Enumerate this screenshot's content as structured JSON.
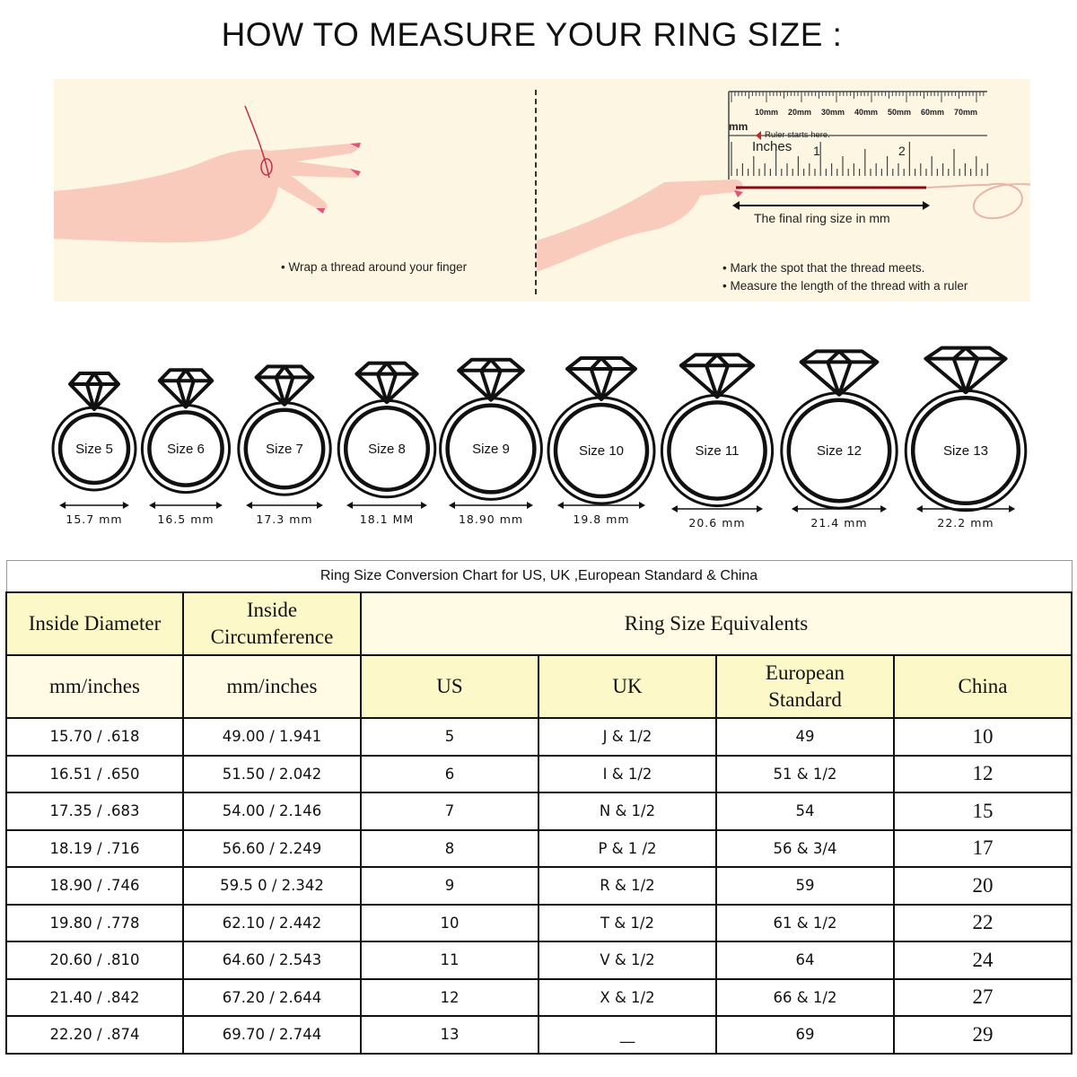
{
  "title": "HOW TO MEASURE YOUR RING SIZE :",
  "instructions": {
    "left": [
      "Wrap a thread around your finger"
    ],
    "right": [
      "Mark the spot that the thread meets.",
      "Measure the length of the thread with a ruler"
    ],
    "ruler": {
      "mm_ticks": [
        "10mm",
        "20mm",
        "30mm",
        "40mm",
        "50mm",
        "60mm",
        "70mm"
      ],
      "mm_label": "mm",
      "start_note": "Ruler starts here.",
      "inches_label": "Inches",
      "inch_ticks": [
        "1",
        "2"
      ],
      "final_label": "The final ring size in mm"
    },
    "thread_color": "#8b0a14"
  },
  "rings": [
    {
      "label": "Size 5",
      "mm": "15.7 mm"
    },
    {
      "label": "Size 6",
      "mm": "16.5 mm"
    },
    {
      "label": "Size 7",
      "mm": "17.3 mm"
    },
    {
      "label": "Size 8",
      "mm": "18.1 MM"
    },
    {
      "label": "Size 9",
      "mm": "18.90 mm"
    },
    {
      "label": "Size 10",
      "mm": "19.8 mm"
    },
    {
      "label": "Size 11",
      "mm": "20.6 mm"
    },
    {
      "label": "Size 12",
      "mm": "21.4 mm"
    },
    {
      "label": "Size 13",
      "mm": "22.2 mm"
    }
  ],
  "table": {
    "caption": "Ring Size Conversion Chart for US, UK ,European Standard & China",
    "header1": {
      "diameter": "Inside Diameter",
      "circumference": "Inside Circumference",
      "equivalents": "Ring Size Equivalents"
    },
    "header2": {
      "diameter_unit": "mm/inches",
      "circumference_unit": "mm/inches",
      "us": "US",
      "uk": "UK",
      "eu": "European Standard",
      "china": "China"
    },
    "rows": [
      [
        "15.70 / .618",
        "49.00 / 1.941",
        "5",
        "J & 1/2",
        "49",
        "10"
      ],
      [
        "16.51 / .650",
        "51.50 / 2.042",
        "6",
        "I & 1/2",
        "51 & 1/2",
        "12"
      ],
      [
        "17.35 / .683",
        "54.00 / 2.146",
        "7",
        "N & 1/2",
        "54",
        "15"
      ],
      [
        "18.19 / .716",
        "56.60 / 2.249",
        "8",
        "P & 1 /2",
        "56 & 3/4",
        "17"
      ],
      [
        "18.90 / .746",
        "59.5 0 / 2.342",
        "9",
        "R & 1/2",
        "59",
        "20"
      ],
      [
        "19.80 / .778",
        "62.10 / 2.442",
        "10",
        "T & 1/2",
        "61 & 1/2",
        "22"
      ],
      [
        "20.60 / .810",
        "64.60 / 2.543",
        "11",
        "V & 1/2",
        "64",
        "24"
      ],
      [
        "21.40 / .842",
        "67.20 / 2.644",
        "12",
        "X & 1/2",
        "66 & 1/2",
        "27"
      ],
      [
        "22.20 / .874",
        "69.70 / 2.744",
        "13",
        "__",
        "69",
        "29"
      ]
    ]
  }
}
